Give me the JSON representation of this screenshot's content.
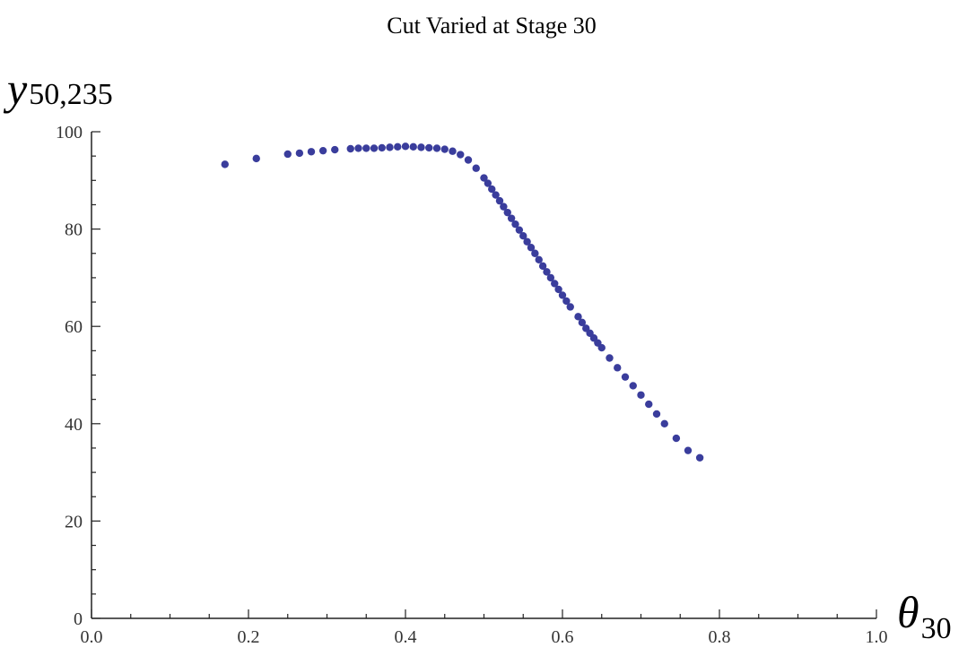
{
  "chart_data": {
    "type": "scatter",
    "title": "Cut Varied at Stage 30",
    "xlabel": {
      "main": "θ",
      "sub": "30"
    },
    "ylabel": {
      "main": "y",
      "sub": "50,235"
    },
    "xlim": [
      0.0,
      1.0
    ],
    "ylim": [
      0,
      100
    ],
    "x_ticks": [
      "0.0",
      "0.2",
      "0.4",
      "0.6",
      "0.8",
      "1.0"
    ],
    "y_ticks": [
      "0",
      "20",
      "40",
      "60",
      "80",
      "100"
    ],
    "grid": false,
    "color": "#3a3d9c",
    "series": [
      {
        "points": [
          [
            0.17,
            93.3
          ],
          [
            0.21,
            94.5
          ],
          [
            0.25,
            95.4
          ],
          [
            0.265,
            95.6
          ],
          [
            0.28,
            95.9
          ],
          [
            0.295,
            96.1
          ],
          [
            0.31,
            96.3
          ],
          [
            0.33,
            96.5
          ],
          [
            0.34,
            96.6
          ],
          [
            0.35,
            96.6
          ],
          [
            0.36,
            96.6
          ],
          [
            0.37,
            96.7
          ],
          [
            0.38,
            96.8
          ],
          [
            0.39,
            96.9
          ],
          [
            0.4,
            97.0
          ],
          [
            0.41,
            96.9
          ],
          [
            0.42,
            96.8
          ],
          [
            0.43,
            96.7
          ],
          [
            0.44,
            96.6
          ],
          [
            0.45,
            96.4
          ],
          [
            0.46,
            96.0
          ],
          [
            0.47,
            95.3
          ],
          [
            0.48,
            94.2
          ],
          [
            0.49,
            92.5
          ],
          [
            0.5,
            90.5
          ],
          [
            0.505,
            89.4
          ],
          [
            0.51,
            88.2
          ],
          [
            0.515,
            87.0
          ],
          [
            0.52,
            85.8
          ],
          [
            0.525,
            84.6
          ],
          [
            0.53,
            83.4
          ],
          [
            0.535,
            82.2
          ],
          [
            0.54,
            81.0
          ],
          [
            0.545,
            79.8
          ],
          [
            0.55,
            78.6
          ],
          [
            0.555,
            77.4
          ],
          [
            0.56,
            76.2
          ],
          [
            0.565,
            75.0
          ],
          [
            0.57,
            73.7
          ],
          [
            0.575,
            72.4
          ],
          [
            0.58,
            71.2
          ],
          [
            0.585,
            70.0
          ],
          [
            0.59,
            68.8
          ],
          [
            0.595,
            67.6
          ],
          [
            0.6,
            66.4
          ],
          [
            0.605,
            65.2
          ],
          [
            0.61,
            64.0
          ],
          [
            0.62,
            62.0
          ],
          [
            0.625,
            60.8
          ],
          [
            0.63,
            59.6
          ],
          [
            0.635,
            58.6
          ],
          [
            0.64,
            57.6
          ],
          [
            0.645,
            56.6
          ],
          [
            0.65,
            55.6
          ],
          [
            0.66,
            53.5
          ],
          [
            0.67,
            51.5
          ],
          [
            0.68,
            49.6
          ],
          [
            0.69,
            47.8
          ],
          [
            0.7,
            45.9
          ],
          [
            0.71,
            44.0
          ],
          [
            0.72,
            42.0
          ],
          [
            0.73,
            40.0
          ],
          [
            0.745,
            37.0
          ],
          [
            0.76,
            34.5
          ],
          [
            0.775,
            33.0
          ]
        ]
      }
    ]
  }
}
